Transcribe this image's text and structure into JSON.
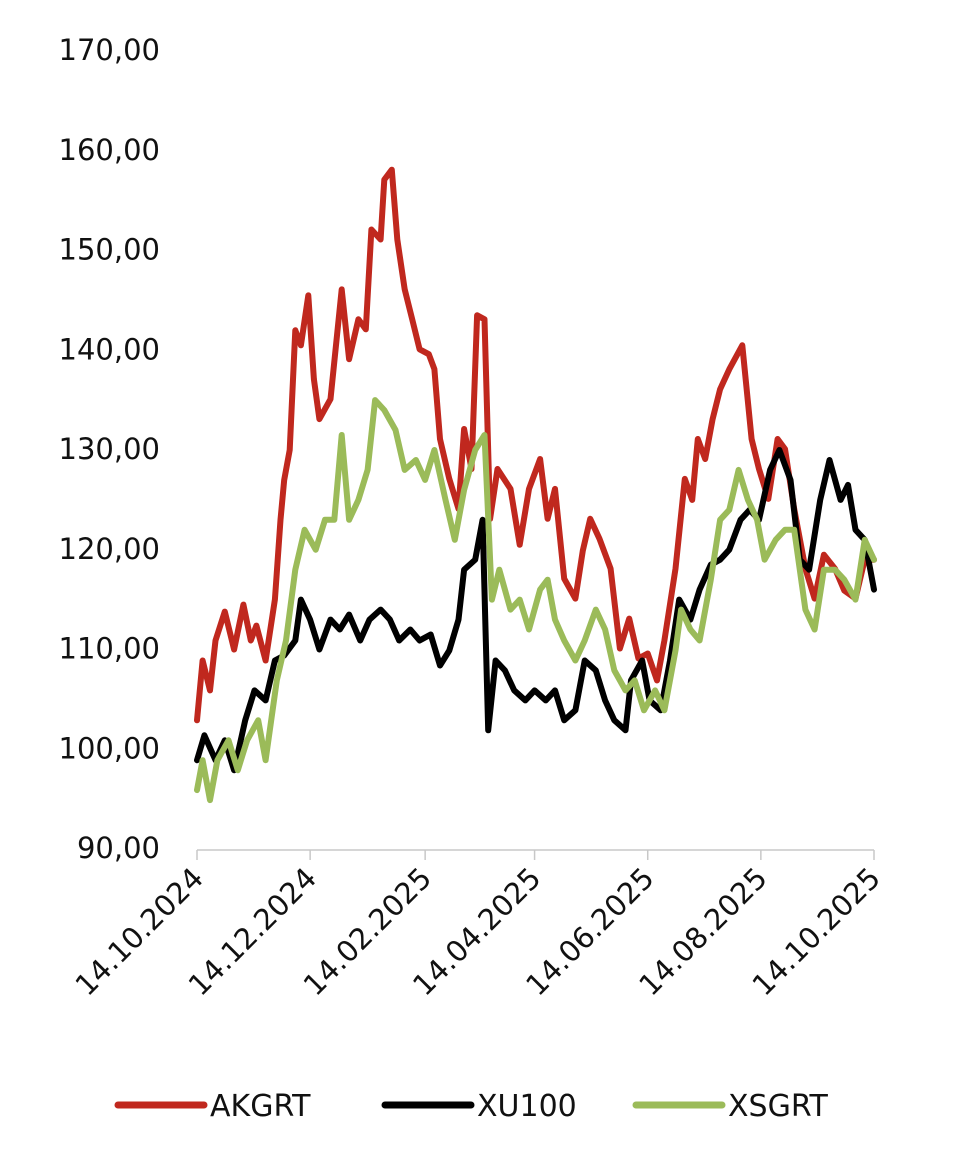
{
  "chart_data": {
    "type": "line",
    "title": "",
    "xlabel": "",
    "ylabel": "",
    "x_unit": "days since 14.10.2024",
    "xlim": [
      0,
      365
    ],
    "ylim": [
      90,
      170
    ],
    "grid": false,
    "legend_position": "bottom",
    "y_ticks": [
      90,
      100,
      110,
      120,
      130,
      140,
      150,
      160,
      170
    ],
    "y_tick_labels": [
      "90,00",
      "100,00",
      "110,00",
      "120,00",
      "130,00",
      "140,00",
      "150,00",
      "160,00",
      "170,00"
    ],
    "x_ticks": [
      0,
      61,
      123,
      182,
      243,
      304,
      365
    ],
    "x_tick_labels": [
      "14.10.2024",
      "14.12.2024",
      "14.02.2025",
      "14.04.2025",
      "14.06.2025",
      "14.08.2025",
      "14.10.2025"
    ],
    "colors": {
      "AKGRT": "#c0281e",
      "XU100": "#000000",
      "XSGRT": "#9bbb59"
    },
    "series": [
      {
        "name": "AKGRT",
        "points": [
          [
            0,
            102.8
          ],
          [
            3,
            108.8
          ],
          [
            7,
            105.8
          ],
          [
            10,
            110.8
          ],
          [
            15,
            113.7
          ],
          [
            20,
            109.9
          ],
          [
            25,
            114.4
          ],
          [
            29,
            110.8
          ],
          [
            32,
            112.3
          ],
          [
            37,
            108.8
          ],
          [
            42,
            114.9
          ],
          [
            45,
            122.9
          ],
          [
            47,
            126.9
          ],
          [
            50,
            129.9
          ],
          [
            53,
            141.9
          ],
          [
            56,
            140.4
          ],
          [
            60,
            145.4
          ],
          [
            63,
            137
          ],
          [
            66,
            133
          ],
          [
            72,
            135
          ],
          [
            78,
            146
          ],
          [
            82,
            139
          ],
          [
            87,
            143
          ],
          [
            91,
            142
          ],
          [
            94,
            152
          ],
          [
            99,
            151
          ],
          [
            101,
            157
          ],
          [
            105,
            158
          ],
          [
            108,
            151
          ],
          [
            112,
            146
          ],
          [
            116,
            143
          ],
          [
            120,
            140
          ],
          [
            125,
            139.5
          ],
          [
            128,
            138
          ],
          [
            131,
            131
          ],
          [
            136,
            127
          ],
          [
            141,
            124
          ],
          [
            144,
            132
          ],
          [
            148,
            128
          ],
          [
            151,
            143.4
          ],
          [
            155,
            143
          ],
          [
            158,
            123
          ],
          [
            162,
            128
          ],
          [
            169,
            126
          ],
          [
            174,
            120.4
          ],
          [
            179,
            126
          ],
          [
            185,
            129
          ],
          [
            189,
            123
          ],
          [
            193,
            126
          ],
          [
            198,
            117
          ],
          [
            204,
            115
          ],
          [
            208,
            119.8
          ],
          [
            212,
            123
          ],
          [
            217,
            121
          ],
          [
            223,
            118
          ],
          [
            228,
            110
          ],
          [
            233,
            113
          ],
          [
            238,
            109
          ],
          [
            243,
            109.5
          ],
          [
            248,
            106.8
          ],
          [
            252,
            110.8
          ],
          [
            258,
            118
          ],
          [
            263,
            127
          ],
          [
            267,
            124.9
          ],
          [
            270,
            131
          ],
          [
            274,
            129
          ],
          [
            278,
            133
          ],
          [
            282,
            136
          ],
          [
            287,
            138
          ],
          [
            294,
            140.4
          ],
          [
            299,
            131
          ],
          [
            303,
            128
          ],
          [
            308,
            125
          ],
          [
            313,
            131
          ],
          [
            317,
            130
          ],
          [
            322,
            124
          ],
          [
            328,
            118
          ],
          [
            333,
            115
          ],
          [
            338,
            119.4
          ],
          [
            344,
            118
          ],
          [
            349,
            115.8
          ],
          [
            355,
            115
          ],
          [
            360,
            118.9
          ],
          [
            365,
            118.9
          ]
        ]
      },
      {
        "name": "XU100",
        "points": [
          [
            0,
            98.8
          ],
          [
            4,
            101.3
          ],
          [
            10,
            98.8
          ],
          [
            15,
            100.8
          ],
          [
            20,
            97.8
          ],
          [
            26,
            102.8
          ],
          [
            31,
            105.8
          ],
          [
            37,
            104.8
          ],
          [
            42,
            108.8
          ],
          [
            47,
            109.3
          ],
          [
            53,
            110.8
          ],
          [
            56,
            114.9
          ],
          [
            61,
            112.9
          ],
          [
            66,
            109.9
          ],
          [
            72,
            112.9
          ],
          [
            77,
            111.9
          ],
          [
            82,
            113.4
          ],
          [
            88,
            110.8
          ],
          [
            93,
            112.9
          ],
          [
            99,
            113.9
          ],
          [
            104,
            112.9
          ],
          [
            109,
            110.8
          ],
          [
            115,
            111.9
          ],
          [
            120,
            110.8
          ],
          [
            126,
            111.4
          ],
          [
            131,
            108.3
          ],
          [
            136,
            109.8
          ],
          [
            141,
            112.9
          ],
          [
            144,
            117.9
          ],
          [
            150,
            118.9
          ],
          [
            154,
            122.9
          ],
          [
            157,
            101.8
          ],
          [
            161,
            108.8
          ],
          [
            166,
            107.8
          ],
          [
            171,
            105.8
          ],
          [
            177,
            104.8
          ],
          [
            182,
            105.8
          ],
          [
            188,
            104.8
          ],
          [
            193,
            105.8
          ],
          [
            198,
            102.8
          ],
          [
            204,
            103.8
          ],
          [
            209,
            108.8
          ],
          [
            215,
            107.8
          ],
          [
            220,
            104.8
          ],
          [
            225,
            102.8
          ],
          [
            231,
            101.8
          ],
          [
            234,
            106.8
          ],
          [
            240,
            108.8
          ],
          [
            244,
            104.8
          ],
          [
            250,
            103.8
          ],
          [
            255,
            108.8
          ],
          [
            260,
            114.9
          ],
          [
            266,
            112.9
          ],
          [
            271,
            115.9
          ],
          [
            277,
            118.4
          ],
          [
            282,
            118.9
          ],
          [
            287,
            119.9
          ],
          [
            293,
            122.9
          ],
          [
            298,
            123.9
          ],
          [
            303,
            122.9
          ],
          [
            309,
            127.9
          ],
          [
            314,
            129.9
          ],
          [
            320,
            126.9
          ],
          [
            325,
            118.9
          ],
          [
            330,
            117.9
          ],
          [
            336,
            124.9
          ],
          [
            341,
            128.9
          ],
          [
            347,
            124.9
          ],
          [
            351,
            126.4
          ],
          [
            355,
            121.9
          ],
          [
            360,
            120.9
          ],
          [
            365,
            115.9
          ]
        ]
      },
      {
        "name": "XSGRT",
        "points": [
          [
            0,
            95.8
          ],
          [
            3,
            98.8
          ],
          [
            7,
            94.8
          ],
          [
            11,
            98.8
          ],
          [
            17,
            100.8
          ],
          [
            22,
            97.8
          ],
          [
            27,
            100.8
          ],
          [
            33,
            102.8
          ],
          [
            37,
            98.8
          ],
          [
            43,
            106.8
          ],
          [
            48,
            110.8
          ],
          [
            53,
            117.9
          ],
          [
            58,
            121.9
          ],
          [
            64,
            119.9
          ],
          [
            69,
            122.9
          ],
          [
            74,
            122.9
          ],
          [
            78,
            131.4
          ],
          [
            82,
            122.9
          ],
          [
            87,
            124.9
          ],
          [
            92,
            127.9
          ],
          [
            96,
            134.9
          ],
          [
            101,
            133.9
          ],
          [
            107,
            131.9
          ],
          [
            112,
            127.9
          ],
          [
            118,
            128.9
          ],
          [
            123,
            126.9
          ],
          [
            128,
            129.9
          ],
          [
            134,
            124.9
          ],
          [
            139,
            120.9
          ],
          [
            144,
            125.9
          ],
          [
            150,
            129.9
          ],
          [
            155,
            131.4
          ],
          [
            159,
            114.9
          ],
          [
            163,
            117.9
          ],
          [
            169,
            113.9
          ],
          [
            174,
            114.9
          ],
          [
            179,
            111.9
          ],
          [
            185,
            115.9
          ],
          [
            189,
            116.9
          ],
          [
            193,
            112.9
          ],
          [
            198,
            110.8
          ],
          [
            204,
            108.8
          ],
          [
            209,
            110.8
          ],
          [
            215,
            113.9
          ],
          [
            220,
            111.9
          ],
          [
            225,
            107.8
          ],
          [
            231,
            105.8
          ],
          [
            236,
            106.8
          ],
          [
            241,
            103.8
          ],
          [
            247,
            105.8
          ],
          [
            252,
            103.8
          ],
          [
            258,
            109.8
          ],
          [
            261,
            113.9
          ],
          [
            266,
            111.9
          ],
          [
            271,
            110.8
          ],
          [
            277,
            116.9
          ],
          [
            282,
            122.9
          ],
          [
            287,
            123.9
          ],
          [
            292,
            127.9
          ],
          [
            297,
            124.9
          ],
          [
            302,
            122.9
          ],
          [
            306,
            118.9
          ],
          [
            312,
            120.9
          ],
          [
            317,
            121.9
          ],
          [
            322,
            121.9
          ],
          [
            328,
            113.9
          ],
          [
            333,
            111.9
          ],
          [
            338,
            117.9
          ],
          [
            344,
            117.9
          ],
          [
            349,
            116.9
          ],
          [
            355,
            114.9
          ],
          [
            360,
            120.9
          ],
          [
            365,
            118.9
          ]
        ]
      }
    ]
  }
}
